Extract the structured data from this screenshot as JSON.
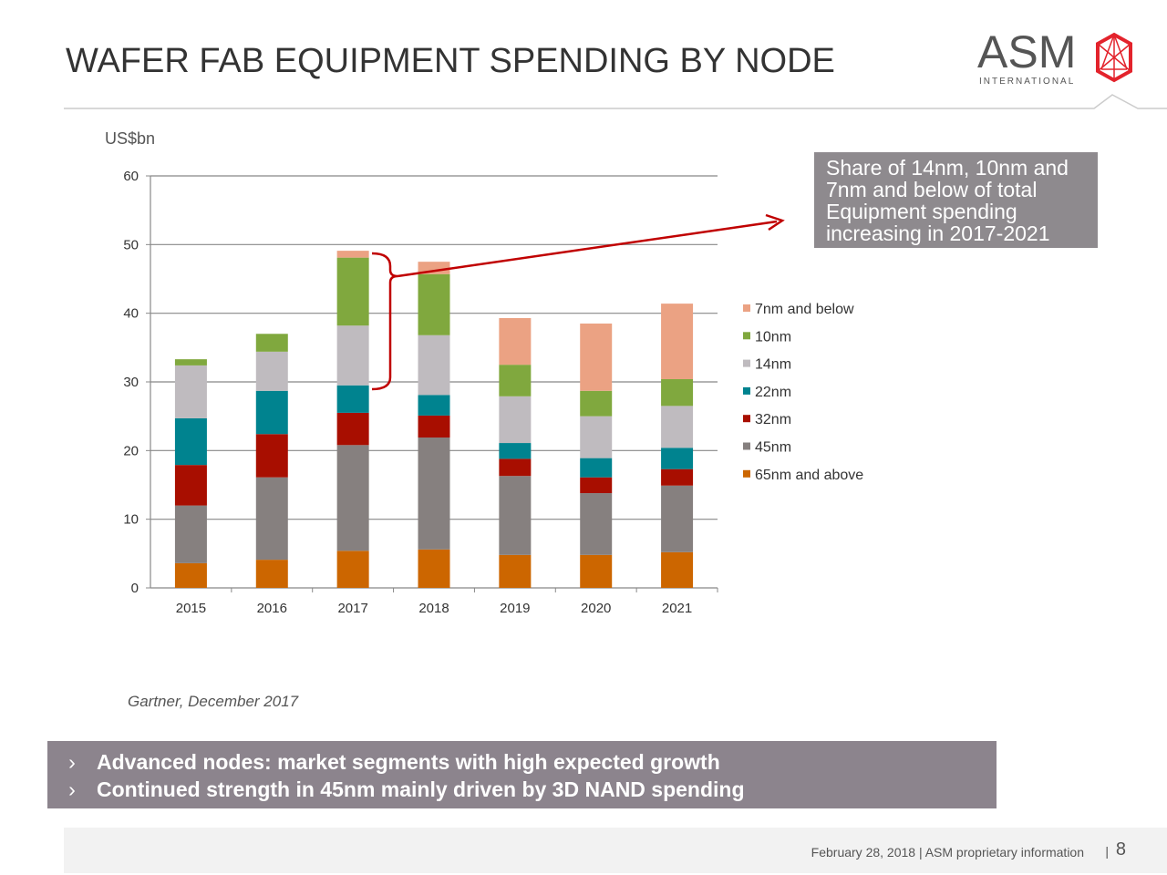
{
  "title": "WAFER FAB EQUIPMENT SPENDING BY NODE",
  "logo": {
    "text": "ASM",
    "subtext": "INTERNATIONAL",
    "color": "#e3232c"
  },
  "callout": "Share of 14nm, 10nm and 7nm and below of total Equipment spending increasing in 2017-2021",
  "source": "Gartner, December 2017",
  "bullets": [
    "Advanced nodes: market segments with high expected growth",
    "Continued strength in 45nm mainly driven by 3D NAND spending"
  ],
  "bullet_icon": "chevron-right-icon",
  "footer": {
    "text": "February 28, 2018  |  ASM proprietary information",
    "separator": "|",
    "page": "8"
  },
  "chart_data": {
    "type": "bar",
    "stacked": true,
    "ylabel": "US$bn",
    "ylim": [
      0,
      60
    ],
    "yticks": [
      0,
      10,
      20,
      30,
      40,
      50,
      60
    ],
    "grid": true,
    "legend_position": "right",
    "categories": [
      "2015",
      "2016",
      "2017",
      "2018",
      "2019",
      "2020",
      "2021"
    ],
    "series": [
      {
        "name": "65nm and above",
        "color": "#cc6600",
        "values": [
          3.6,
          4.1,
          5.4,
          5.6,
          4.8,
          4.8,
          5.2
        ]
      },
      {
        "name": "45nm",
        "color": "#86807f",
        "values": [
          8.4,
          12.0,
          15.4,
          16.3,
          11.5,
          9.0,
          9.7
        ]
      },
      {
        "name": "32nm",
        "color": "#a80e00",
        "values": [
          5.9,
          6.3,
          4.7,
          3.2,
          2.5,
          2.3,
          2.4
        ]
      },
      {
        "name": "22nm",
        "color": "#00838f",
        "values": [
          6.8,
          6.3,
          4.0,
          3.0,
          2.3,
          2.8,
          3.1
        ]
      },
      {
        "name": "14nm",
        "color": "#bfbbbf",
        "values": [
          7.7,
          5.7,
          8.7,
          8.7,
          6.8,
          6.1,
          6.1
        ]
      },
      {
        "name": "10nm",
        "color": "#80a83e",
        "values": [
          0.9,
          2.6,
          9.9,
          8.9,
          4.6,
          3.7,
          3.9
        ]
      },
      {
        "name": "7nm and below",
        "color": "#eba283",
        "values": [
          0,
          0,
          1.0,
          1.8,
          6.8,
          9.8,
          11.0
        ]
      }
    ],
    "annotation_color": "#c00000"
  }
}
